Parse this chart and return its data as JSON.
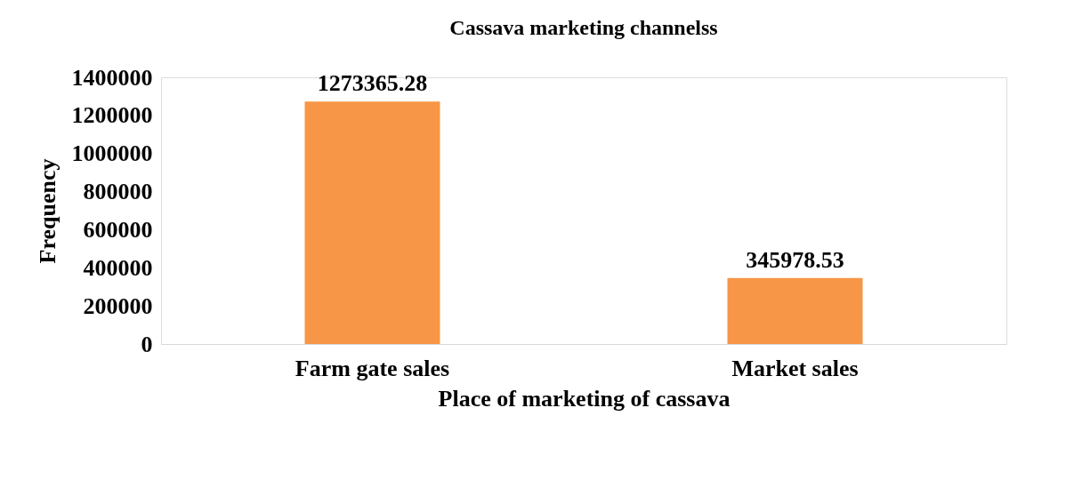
{
  "chart_data": {
    "type": "bar",
    "title": "Cassava marketing channelss",
    "xlabel": "Place of marketing of cassava",
    "ylabel": "Frequency",
    "categories": [
      "Farm gate sales",
      "Market sales"
    ],
    "values": [
      1273365.28,
      345978.53
    ],
    "color": "#f79646",
    "ylim": [
      0,
      1400000
    ],
    "yticks": [
      0,
      200000,
      400000,
      600000,
      800000,
      1000000,
      1200000,
      1400000
    ],
    "data_labels": true,
    "grid": false
  }
}
